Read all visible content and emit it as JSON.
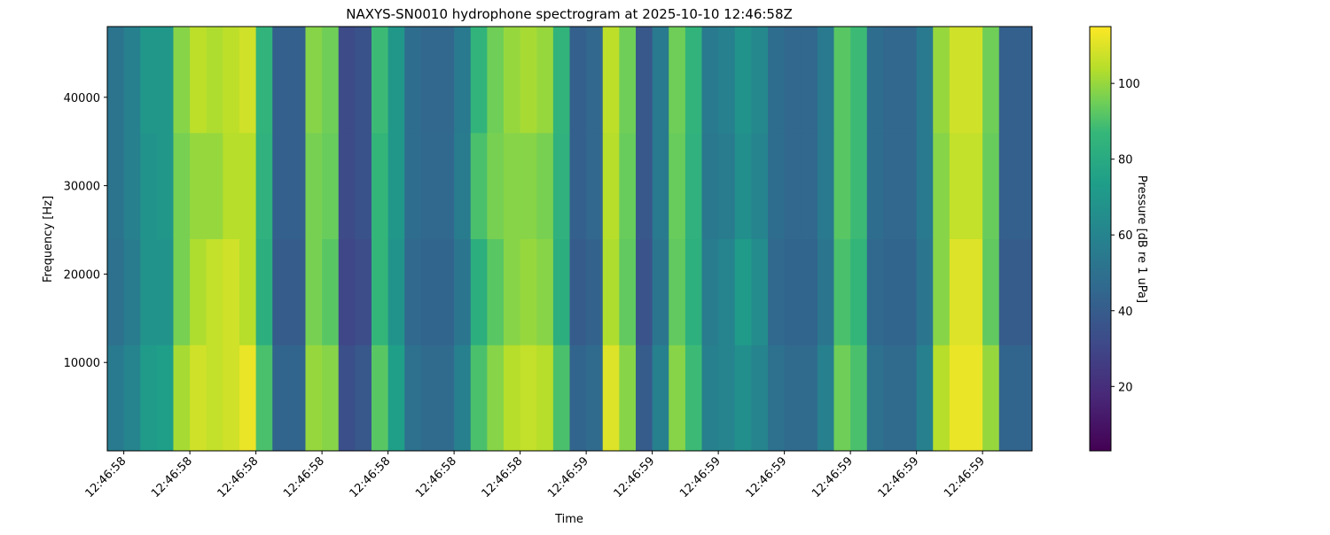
{
  "chart_data": {
    "type": "heatmap",
    "title": "NAXYS-SN0010 hydrophone spectrogram at 2025-10-10 12:46:58Z",
    "x_label": "Time",
    "y_label": "Frequency [Hz]",
    "colorbar_label": "Pressure [dB re 1 uPa]",
    "colormap": "viridis",
    "xlim": [
      58.275,
      59.675
    ],
    "ylim": [
      0,
      48000
    ],
    "clim": [
      3,
      115
    ],
    "xticks": [
      {
        "value": 58.3,
        "label": "12:46:58"
      },
      {
        "value": 58.4,
        "label": "12:46:58"
      },
      {
        "value": 58.5,
        "label": "12:46:58"
      },
      {
        "value": 58.6,
        "label": "12:46:58"
      },
      {
        "value": 58.7,
        "label": "12:46:58"
      },
      {
        "value": 58.8,
        "label": "12:46:58"
      },
      {
        "value": 58.9,
        "label": "12:46:58"
      },
      {
        "value": 59.0,
        "label": "12:46:59"
      },
      {
        "value": 59.1,
        "label": "12:46:59"
      },
      {
        "value": 59.2,
        "label": "12:46:59"
      },
      {
        "value": 59.3,
        "label": "12:46:59"
      },
      {
        "value": 59.4,
        "label": "12:46:59"
      },
      {
        "value": 59.5,
        "label": "12:46:59"
      },
      {
        "value": 59.6,
        "label": "12:46:59"
      }
    ],
    "yticks": [
      10000,
      20000,
      30000,
      40000
    ],
    "cticks": [
      20,
      40,
      60,
      80,
      100
    ],
    "x_edges": [
      58.275,
      58.3,
      58.325,
      58.35,
      58.375,
      58.4,
      58.425,
      58.45,
      58.475,
      58.5,
      58.525,
      58.55,
      58.575,
      58.6,
      58.625,
      58.65,
      58.675,
      58.7,
      58.725,
      58.75,
      58.775,
      58.8,
      58.825,
      58.85,
      58.875,
      58.9,
      58.925,
      58.95,
      58.975,
      59.0,
      59.025,
      59.05,
      59.075,
      59.1,
      59.125,
      59.15,
      59.175,
      59.2,
      59.225,
      59.25,
      59.275,
      59.3,
      59.325,
      59.35,
      59.375,
      59.4,
      59.425,
      59.45,
      59.475,
      59.5,
      59.525,
      59.55,
      59.575,
      59.6,
      59.625,
      59.65,
      59.675
    ],
    "y_edges": [
      0,
      12000,
      24000,
      36000,
      48000
    ],
    "z": [
      [
        55,
        60,
        72,
        74,
        102,
        108,
        106,
        108,
        112,
        90,
        44,
        44,
        100,
        98,
        34,
        38,
        92,
        74,
        50,
        47,
        47,
        58,
        90,
        98,
        104,
        106,
        104,
        90,
        44,
        47,
        110,
        98,
        40,
        58,
        98,
        88,
        58,
        60,
        66,
        60,
        50,
        47,
        47,
        58,
        95,
        90,
        50,
        47,
        47,
        58,
        104,
        112,
        112,
        100,
        44,
        44
      ],
      [
        50,
        56,
        68,
        68,
        96,
        103,
        106,
        108,
        104,
        82,
        40,
        40,
        96,
        92,
        30,
        33,
        86,
        68,
        46,
        44,
        44,
        53,
        82,
        92,
        98,
        100,
        98,
        82,
        40,
        43,
        103,
        93,
        36,
        53,
        93,
        83,
        56,
        60,
        72,
        64,
        46,
        44,
        44,
        53,
        90,
        86,
        46,
        44,
        44,
        53,
        98,
        110,
        110,
        93,
        40,
        40
      ],
      [
        52,
        58,
        68,
        70,
        96,
        100,
        100,
        104,
        104,
        84,
        42,
        42,
        96,
        94,
        32,
        35,
        86,
        70,
        48,
        46,
        46,
        56,
        90,
        96,
        98,
        98,
        96,
        84,
        42,
        45,
        104,
        94,
        38,
        55,
        94,
        84,
        54,
        56,
        66,
        60,
        48,
        45,
        45,
        55,
        92,
        88,
        48,
        45,
        45,
        55,
        98,
        106,
        106,
        94,
        42,
        42
      ],
      [
        52,
        58,
        70,
        70,
        98,
        105,
        103,
        105,
        108,
        85,
        42,
        42,
        98,
        95,
        32,
        35,
        88,
        70,
        48,
        45,
        45,
        55,
        85,
        95,
        100,
        102,
        100,
        85,
        42,
        45,
        105,
        95,
        38,
        55,
        95,
        85,
        55,
        58,
        68,
        62,
        48,
        45,
        45,
        55,
        92,
        88,
        48,
        45,
        45,
        55,
        100,
        108,
        108,
        95,
        42,
        42
      ]
    ]
  }
}
